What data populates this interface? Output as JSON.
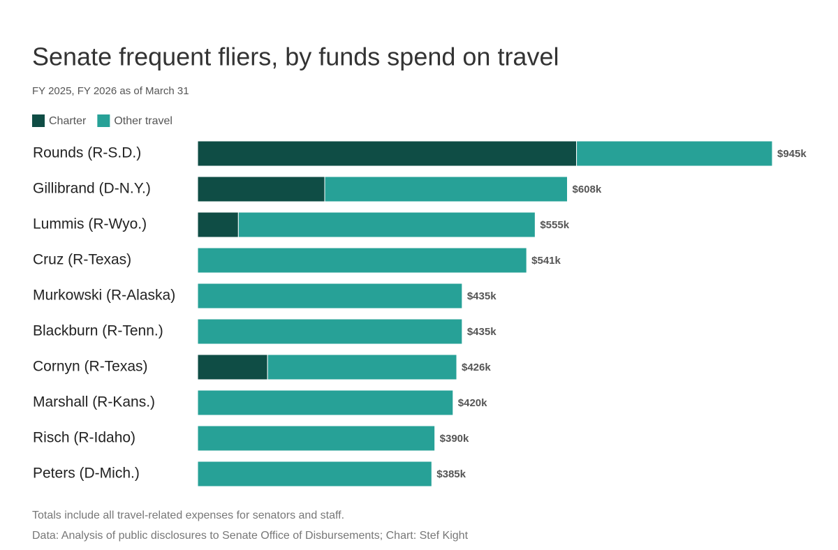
{
  "chart_data": {
    "type": "stacked-bar",
    "title": "Senate frequent fliers, by funds spend on travel",
    "subtitle": "FY 2025, FY 2026 as of March 31",
    "categories": [
      "Rounds (R-S.D.)",
      "Gillibrand (D-N.Y.)",
      "Lummis (R-Wyo.)",
      "Cruz (R-Texas)",
      "Murkowski (R-Alaska)",
      "Blackburn (R-Tenn.)",
      "Cornyn (R-Texas)",
      "Marshall (R-Kans.)",
      "Risch (R-Idaho)",
      "Peters (D-Mich.)"
    ],
    "series": [
      {
        "name": "Charter",
        "color": "#0f4d45",
        "values": [
          623,
          209,
          67,
          0,
          0,
          0,
          115,
          0,
          0,
          0
        ]
      },
      {
        "name": "Other travel",
        "color": "#27a197",
        "values": [
          322,
          399,
          488,
          541,
          435,
          435,
          311,
          420,
          390,
          385
        ]
      }
    ],
    "totals": {
      "values": [
        945,
        608,
        555,
        541,
        435,
        435,
        426,
        420,
        390,
        385
      ],
      "value_labels": [
        "$945k",
        "$608k",
        "$555k",
        "$541k",
        "$435k",
        "$435k",
        "$426k",
        "$420k",
        "$390k",
        "$385k"
      ]
    },
    "xlim": [
      0,
      945
    ],
    "notes": [
      "Totals include all travel-related expenses for senators and staff.",
      "Data: Analysis of public disclosures to Senate Office of Disbursements; Chart: Stef Kight"
    ]
  }
}
